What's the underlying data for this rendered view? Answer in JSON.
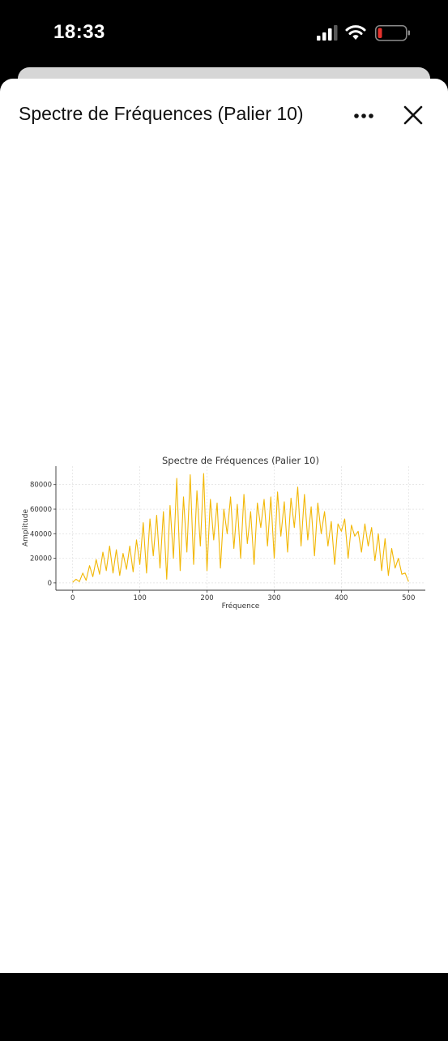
{
  "status_bar": {
    "time": "18:33"
  },
  "sheet": {
    "title": "Spectre de Fréquences (Palier 10)"
  },
  "icons": {
    "more": "more-horizontal-icon",
    "close": "close-icon",
    "signal": "cellular-signal-icon",
    "wifi": "wifi-icon",
    "battery": "battery-low-icon"
  },
  "colors": {
    "series": "#f2b705",
    "battery_low": "#e5322d"
  },
  "chart_data": {
    "type": "line",
    "title": "Spectre de Fréquences (Palier 10)",
    "xlabel": "Fréquence",
    "ylabel": "Amplitude",
    "xlim": [
      -25,
      525
    ],
    "ylim": [
      -6000,
      95000
    ],
    "xticks": [
      0,
      100,
      200,
      300,
      400,
      500
    ],
    "yticks": [
      0,
      20000,
      40000,
      60000,
      80000
    ],
    "grid": true,
    "series": [
      {
        "color": "#f2b705",
        "x": [
          0,
          5,
          10,
          15,
          20,
          25,
          30,
          35,
          40,
          45,
          50,
          55,
          60,
          65,
          70,
          75,
          80,
          85,
          90,
          95,
          100,
          105,
          110,
          115,
          120,
          125,
          130,
          135,
          140,
          145,
          150,
          155,
          160,
          165,
          170,
          175,
          180,
          185,
          190,
          195,
          200,
          205,
          210,
          215,
          220,
          225,
          230,
          235,
          240,
          245,
          250,
          255,
          260,
          265,
          270,
          275,
          280,
          285,
          290,
          295,
          300,
          305,
          310,
          315,
          320,
          325,
          330,
          335,
          340,
          345,
          350,
          355,
          360,
          365,
          370,
          375,
          380,
          385,
          390,
          395,
          400,
          405,
          410,
          415,
          420,
          425,
          430,
          435,
          440,
          445,
          450,
          455,
          460,
          465,
          470,
          475,
          480,
          485,
          490,
          495,
          500
        ],
        "values": [
          500,
          3000,
          1000,
          8000,
          2000,
          14000,
          5000,
          19000,
          7000,
          25000,
          10000,
          30000,
          8000,
          27000,
          6000,
          24000,
          11000,
          30000,
          9000,
          35000,
          15000,
          49000,
          8000,
          52000,
          22000,
          55000,
          12000,
          58000,
          3000,
          63000,
          20000,
          85000,
          10000,
          70000,
          25000,
          88000,
          15000,
          75000,
          30000,
          89000,
          10000,
          68000,
          35000,
          65000,
          12000,
          60000,
          40000,
          70000,
          28000,
          64000,
          20000,
          72000,
          32000,
          58000,
          15000,
          65000,
          45000,
          68000,
          30000,
          70000,
          20000,
          74000,
          38000,
          66000,
          25000,
          69000,
          45000,
          78000,
          30000,
          72000,
          35000,
          62000,
          22000,
          65000,
          40000,
          58000,
          30000,
          50000,
          15000,
          48000,
          42000,
          52000,
          20000,
          47000,
          38000,
          42000,
          25000,
          48000,
          30000,
          45000,
          18000,
          40000,
          10000,
          36000,
          6000,
          28000,
          12000,
          20000,
          7000,
          8000,
          1000
        ]
      }
    ]
  }
}
